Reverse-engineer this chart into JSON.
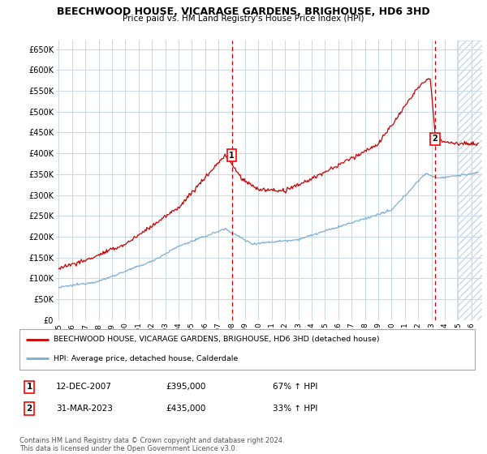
{
  "title": "BEECHWOOD HOUSE, VICARAGE GARDENS, BRIGHOUSE, HD6 3HD",
  "subtitle": "Price paid vs. HM Land Registry's House Price Index (HPI)",
  "ylabel_ticks": [
    "£0",
    "£50K",
    "£100K",
    "£150K",
    "£200K",
    "£250K",
    "£300K",
    "£350K",
    "£400K",
    "£450K",
    "£500K",
    "£550K",
    "£600K",
    "£650K"
  ],
  "ytick_values": [
    0,
    50000,
    100000,
    150000,
    200000,
    250000,
    300000,
    350000,
    400000,
    450000,
    500000,
    550000,
    600000,
    650000
  ],
  "ylim": [
    0,
    670000
  ],
  "xlim_start": 1994.8,
  "xlim_end": 2026.8,
  "xtick_years": [
    1995,
    1996,
    1997,
    1998,
    1999,
    2000,
    2001,
    2002,
    2003,
    2004,
    2005,
    2006,
    2007,
    2008,
    2009,
    2010,
    2011,
    2012,
    2013,
    2014,
    2015,
    2016,
    2017,
    2018,
    2019,
    2020,
    2021,
    2022,
    2023,
    2024,
    2025,
    2026
  ],
  "hpi_color": "#7bafd4",
  "price_color": "#cc0000",
  "dashed_line_color": "#cc0000",
  "legend_label_red": "BEECHWOOD HOUSE, VICARAGE GARDENS, BRIGHOUSE, HD6 3HD (detached house)",
  "legend_label_blue": "HPI: Average price, detached house, Calderdale",
  "sale1_label": "1",
  "sale1_date": "12-DEC-2007",
  "sale1_price": "£395,000",
  "sale1_hpi": "67% ↑ HPI",
  "sale1_year": 2008.0,
  "sale1_value": 395000,
  "sale2_label": "2",
  "sale2_date": "31-MAR-2023",
  "sale2_price": "£435,000",
  "sale2_hpi": "33% ↑ HPI",
  "sale2_year": 2023.25,
  "sale2_value": 435000,
  "hatch_start": 2024.9,
  "footer": "Contains HM Land Registry data © Crown copyright and database right 2024.\nThis data is licensed under the Open Government Licence v3.0.",
  "bg_color": "#ffffff",
  "grid_color": "#c8d8e8",
  "hatch_color": "#c8d8e8"
}
